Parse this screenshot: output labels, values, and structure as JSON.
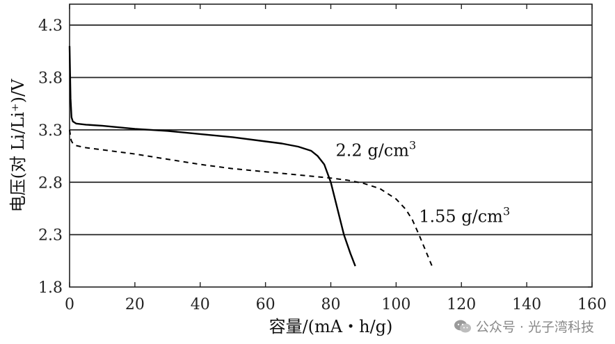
{
  "chart_data": {
    "type": "line",
    "xlabel": "容量/(mA・h/g)",
    "ylabel": "电压(对 Li/Li⁺)/V",
    "xlim": [
      0,
      160
    ],
    "ylim": [
      1.8,
      4.5
    ],
    "x_ticks": [
      "0",
      "20",
      "40",
      "60",
      "80",
      "100",
      "120",
      "140",
      "160"
    ],
    "y_ticks": [
      "1.8",
      "2.3",
      "2.8",
      "3.3",
      "3.8",
      "4.3"
    ],
    "grid": "horizontal",
    "series": [
      {
        "name": "2.2 g/cm³",
        "style": "solid",
        "color": "#000000",
        "x": [
          0,
          0.3,
          0.6,
          1,
          2,
          5,
          10,
          20,
          30,
          40,
          50,
          60,
          65,
          70,
          74,
          76,
          78,
          80,
          82,
          84,
          86,
          87.5
        ],
        "y": [
          4.1,
          3.6,
          3.42,
          3.38,
          3.36,
          3.35,
          3.34,
          3.31,
          3.29,
          3.26,
          3.23,
          3.19,
          3.17,
          3.14,
          3.1,
          3.05,
          2.97,
          2.8,
          2.55,
          2.3,
          2.12,
          2.0
        ]
      },
      {
        "name": "1.55 g/cm³",
        "style": "dashed",
        "color": "#000000",
        "x": [
          0,
          0.5,
          1,
          2,
          5,
          10,
          20,
          30,
          40,
          50,
          60,
          70,
          80,
          85,
          90,
          95,
          100,
          103,
          105,
          107,
          109,
          111
        ],
        "y": [
          3.3,
          3.2,
          3.17,
          3.15,
          3.13,
          3.11,
          3.07,
          3.02,
          2.97,
          2.93,
          2.9,
          2.87,
          2.84,
          2.82,
          2.79,
          2.74,
          2.64,
          2.54,
          2.44,
          2.3,
          2.15,
          2.0
        ]
      }
    ],
    "annotations": [
      {
        "series": "2.2 g/cm³",
        "text": "2.2 g/cm³",
        "x": 81.5,
        "y": 3.05
      },
      {
        "series": "1.55 g/cm³",
        "text": "1.55 g/cm³",
        "x": 107,
        "y": 2.42
      }
    ]
  },
  "watermark": {
    "text": "公众号 · 光子湾科技",
    "icon": "wechat-icon"
  }
}
